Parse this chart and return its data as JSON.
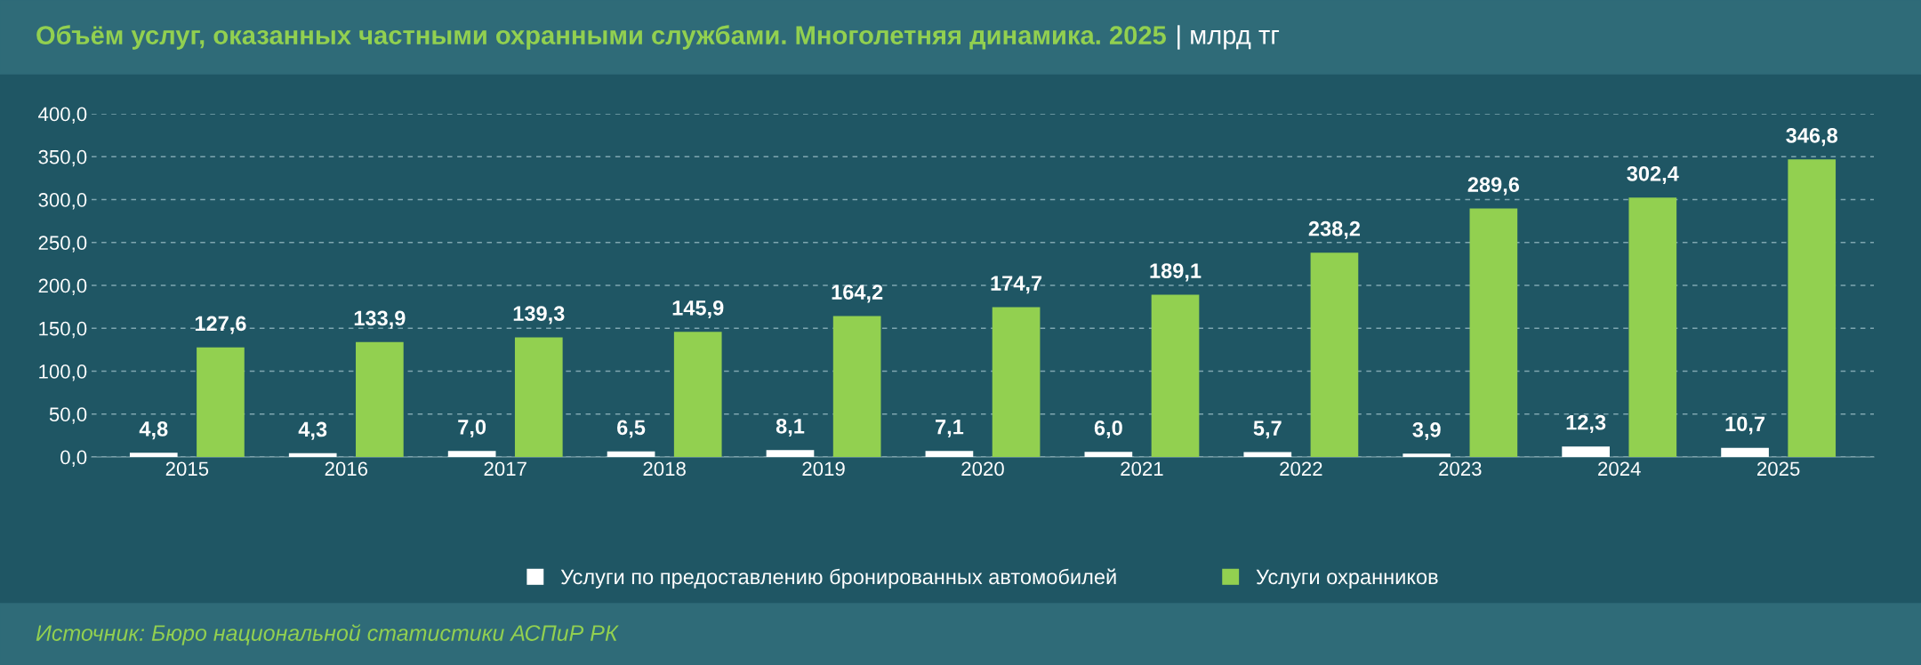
{
  "chart_data": {
    "type": "bar",
    "title": "Объём услуг, оказанных частными охранными службами. Многолетняя динамика. 2025",
    "subtitle": "| млрд тг",
    "categories": [
      "2015",
      "2016",
      "2017",
      "2018",
      "2019",
      "2020",
      "2021",
      "2022",
      "2023",
      "2024",
      "2025"
    ],
    "series": [
      {
        "name": "Услуги по предоставлению бронированных автомобилей",
        "color": "#ffffff",
        "values": [
          4.8,
          4.3,
          7.0,
          6.5,
          8.1,
          7.1,
          6.0,
          5.7,
          3.9,
          12.3,
          10.7
        ],
        "value_labels": [
          "4,8",
          "4,3",
          "7,0",
          "6,5",
          "8,1",
          "7,1",
          "6,0",
          "5,7",
          "3,9",
          "12,3",
          "10,7"
        ]
      },
      {
        "name": "Услуги охранников",
        "color": "#92d050",
        "values": [
          127.6,
          133.9,
          139.3,
          145.9,
          164.2,
          174.7,
          189.1,
          238.2,
          289.6,
          302.4,
          346.8
        ],
        "value_labels": [
          "127,6",
          "133,9",
          "139,3",
          "145,9",
          "164,2",
          "174,7",
          "189,1",
          "238,2",
          "289,6",
          "302,4",
          "346,8"
        ]
      }
    ],
    "ylim": [
      0,
      400
    ],
    "yticks": [
      {
        "value": 0,
        "label": "0,0"
      },
      {
        "value": 50,
        "label": "50,0"
      },
      {
        "value": 100,
        "label": "100,0"
      },
      {
        "value": 150,
        "label": "150,0"
      },
      {
        "value": 200,
        "label": "200,0"
      },
      {
        "value": 250,
        "label": "250,0"
      },
      {
        "value": 300,
        "label": "300,0"
      },
      {
        "value": 350,
        "label": "350,0"
      },
      {
        "value": 400,
        "label": "400,0"
      }
    ],
    "grid": "y",
    "legend": "bottom",
    "annotations": [
      "Источник: Бюро национальной статистики АСПиР РК"
    ]
  }
}
